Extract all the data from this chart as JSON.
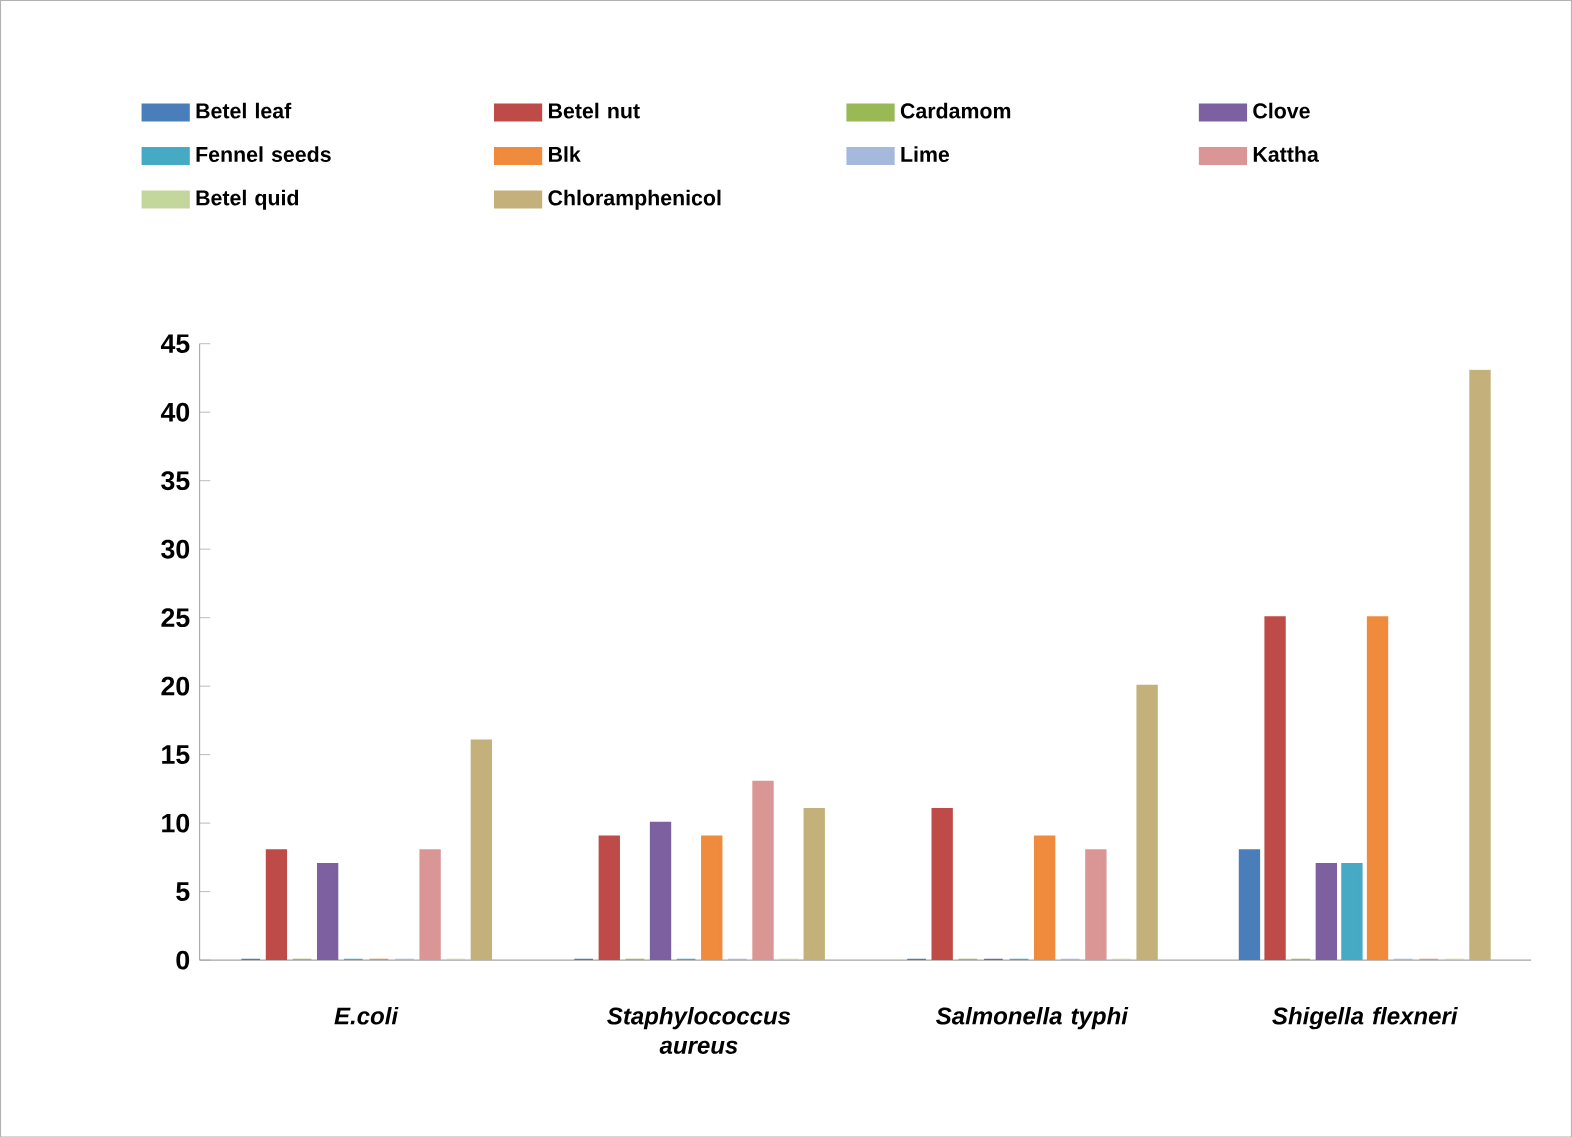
{
  "chart_data": {
    "type": "bar",
    "categories": [
      "E.coli",
      "Staphylococcus aureus",
      "Salmonella typhi",
      "Shigella flexneri"
    ],
    "series": [
      {
        "name": "Betel leaf",
        "color": "#4a7ebb",
        "values": [
          0,
          0,
          0,
          8
        ]
      },
      {
        "name": "Betel nut",
        "color": "#be4b48",
        "values": [
          8,
          9,
          11,
          25
        ]
      },
      {
        "name": "Cardamom",
        "color": "#98b954",
        "values": [
          0,
          0,
          0,
          0
        ]
      },
      {
        "name": "Clove",
        "color": "#7d60a0",
        "values": [
          7,
          10,
          0,
          7
        ]
      },
      {
        "name": "Fennel seeds",
        "color": "#46aac5",
        "values": [
          0,
          0,
          0,
          7
        ]
      },
      {
        "name": "Blk",
        "color": "#f08a3c",
        "values": [
          0,
          9,
          9,
          25
        ]
      },
      {
        "name": "Lime",
        "color": "#a5b9dd",
        "values": [
          0,
          0,
          0,
          0
        ]
      },
      {
        "name": "Kattha",
        "color": "#d99694",
        "values": [
          8,
          13,
          8,
          0
        ]
      },
      {
        "name": "Betel quid",
        "color": "#c3d69b",
        "values": [
          0,
          0,
          0,
          0
        ]
      },
      {
        "name": "Chloramphenicol",
        "color": "#c4b07a",
        "values": [
          16,
          11,
          20,
          43
        ]
      }
    ],
    "ylim": [
      0,
      45
    ],
    "yticks": [
      0,
      5,
      10,
      15,
      20,
      25,
      30,
      35,
      40,
      45
    ],
    "grid": false,
    "legend": "top"
  }
}
